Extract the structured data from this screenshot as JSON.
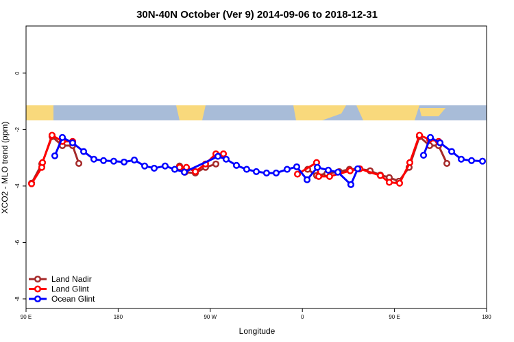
{
  "chart_data": {
    "type": "line",
    "title": "30N-40N October (Ver 9)   2014-09-06 to 2018-12-31",
    "x_label": "Longitude",
    "y_label": "XCO2 - MLO trend (ppm)",
    "xlim": [
      90,
      540
    ],
    "xticks": [
      {
        "value": 90,
        "label": "90 E"
      },
      180,
      {
        "value": 270,
        "label": "90 W"
      },
      {
        "value": 360,
        "label": "0"
      },
      {
        "value": 450,
        "label": "90 E"
      },
      {
        "value": 540,
        "label": "180"
      }
    ],
    "ylim": [
      -8.34,
      1.67
    ],
    "yticks": [
      0,
      -2,
      -4,
      -6,
      -8
    ],
    "legend": "bottom-left",
    "series": [
      {
        "name": "Land Nadir",
        "color": "#a52a2a",
        "x": [
          95.4,
          105.4,
          115.4,
          125.5,
          135.5,
          141.6,
          null,
          240,
          245.4,
          255.4,
          265.4,
          275.5,
          null,
          365.2,
          373.9,
          384,
          396,
          406,
          415.4,
          426.2,
          436.2,
          444.9,
          454.3,
          464.3,
          474.4,
          484.4,
          493.1,
          501.2
        ],
        "values": [
          -3.9,
          -3.22,
          -2.25,
          -2.57,
          -2.57,
          -3.2,
          null,
          -3.29,
          -3.51,
          -3.54,
          -3.34,
          -3.22,
          null,
          -3.41,
          -3.63,
          -3.56,
          -3.49,
          -3.41,
          -3.39,
          -3.46,
          -3.61,
          -3.7,
          -3.83,
          -3.34,
          -2.25,
          -2.57,
          -2.57,
          -3.2
        ]
      },
      {
        "name": "Land Glint",
        "color": "#ff0000",
        "x": [
          95.4,
          105.4,
          106.1,
          115.4,
          125.5,
          135.5,
          null,
          240,
          246.7,
          255.4,
          265.4,
          275.5,
          282.9,
          null,
          355.2,
          373.9,
          376,
          386.6,
          406.7,
          416.1,
          436.2,
          444.9,
          455,
          465,
          474.4,
          484.4,
          493.1
        ],
        "values": [
          -3.92,
          -3.34,
          -3.17,
          -2.2,
          -2.42,
          -2.42,
          null,
          -3.34,
          -3.34,
          -3.49,
          -3.22,
          -2.86,
          -2.86,
          null,
          -3.58,
          -3.17,
          -3.66,
          -3.66,
          -3.46,
          -3.39,
          -3.63,
          -3.87,
          -3.9,
          -3.17,
          -2.2,
          -2.35,
          -2.42
        ]
      },
      {
        "name": "Ocean Glint",
        "color": "#0000ff",
        "x": [
          118.1,
          125.5,
          135.5,
          146.3,
          156.3,
          165.7,
          175.7,
          185.8,
          195.8,
          205.9,
          215.2,
          225.9,
          235.3,
          244.7,
          277.5,
          285.5,
          295.6,
          305.6,
          315,
          325,
          334.4,
          345.1,
          354.5,
          364.6,
          374.6,
          385.3,
          394.7,
          407.4,
          414.1,
          null,
          478.4,
          485.1,
          494.5,
          505.9,
          515.2,
          525.3,
          536
        ],
        "values": [
          -2.93,
          -2.28,
          -2.47,
          -2.78,
          -3.05,
          -3.1,
          -3.12,
          -3.15,
          -3.08,
          -3.29,
          -3.37,
          -3.29,
          -3.41,
          -3.51,
          -2.95,
          -3.05,
          -3.27,
          -3.41,
          -3.49,
          -3.54,
          -3.54,
          -3.41,
          -3.32,
          -3.78,
          -3.34,
          -3.44,
          -3.51,
          -3.95,
          -3.39,
          null,
          -2.91,
          -2.28,
          -2.47,
          -2.78,
          -3.05,
          -3.1,
          -3.12
        ]
      }
    ]
  }
}
